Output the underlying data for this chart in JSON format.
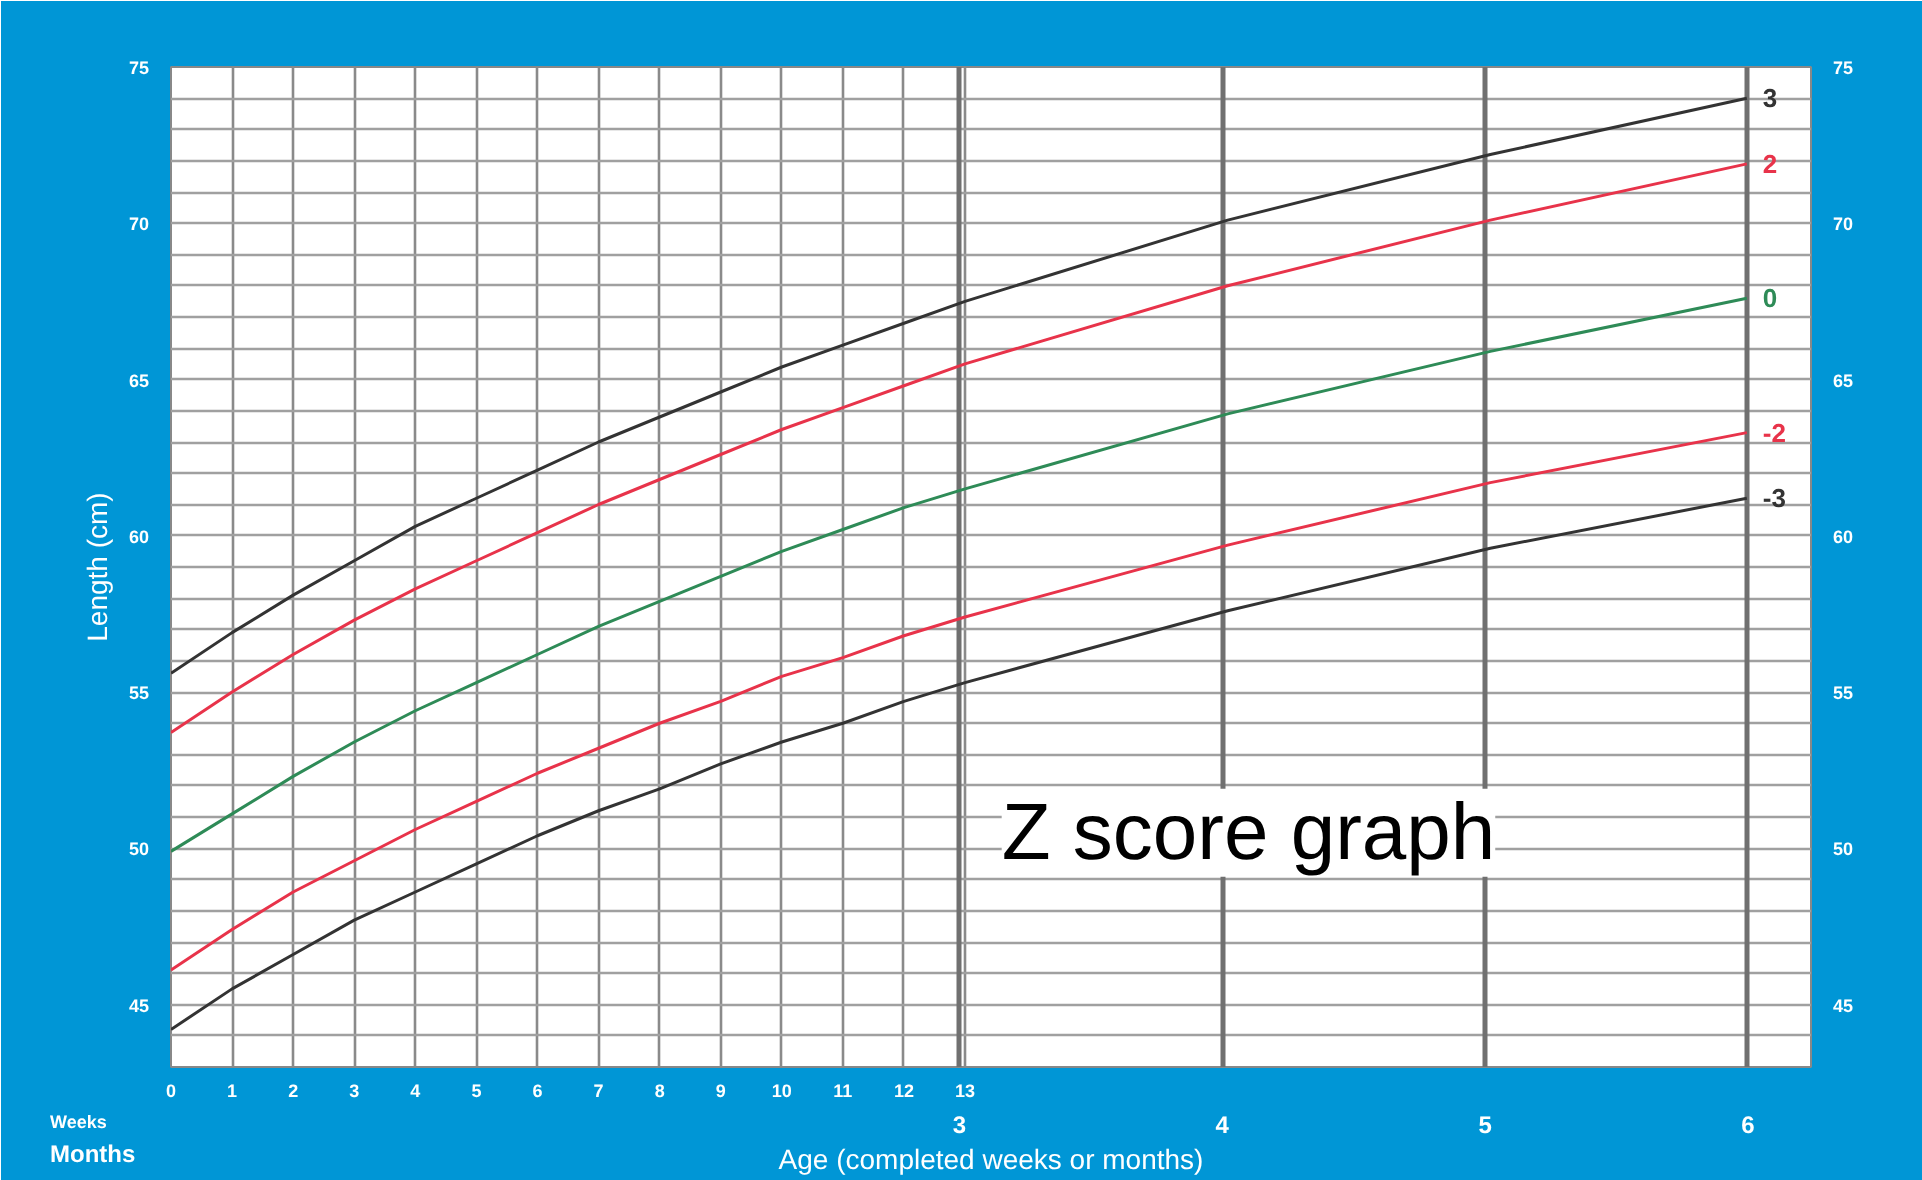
{
  "chart_data": {
    "type": "line",
    "xlabel": "Age (completed weeks or months)",
    "ylabel": "Length (cm)",
    "annotations": [
      "Weeks",
      "Months",
      "Z score graph"
    ],
    "x": [
      0,
      1,
      2,
      3,
      4,
      5,
      6,
      7,
      8,
      9,
      10,
      11,
      12,
      13,
      17.3,
      21.6,
      25.8
    ],
    "xlim": [
      0,
      26.85
    ],
    "xticks": [
      0,
      1,
      2,
      3,
      4,
      5,
      6,
      7,
      8,
      9,
      10,
      11,
      12,
      13
    ],
    "x2lim": [
      0,
      6.24
    ],
    "x2ticks": [
      3,
      4,
      5,
      6
    ],
    "ylim": [
      43,
      75
    ],
    "yticks": [
      {
        "value": 43,
        "label": null
      },
      {
        "value": 44,
        "label": null
      },
      45,
      {
        "value": 46,
        "label": null
      },
      {
        "value": 47,
        "label": null
      },
      {
        "value": 48,
        "label": null
      },
      {
        "value": 49,
        "label": null
      },
      50,
      {
        "value": 51,
        "label": null
      },
      {
        "value": 52,
        "label": null
      },
      {
        "value": 53,
        "label": null
      },
      {
        "value": 54,
        "label": null
      },
      55,
      {
        "value": 56,
        "label": null
      },
      {
        "value": 57,
        "label": null
      },
      {
        "value": 58,
        "label": null
      },
      {
        "value": 59,
        "label": null
      },
      60,
      {
        "value": 61,
        "label": null
      },
      {
        "value": 62,
        "label": null
      },
      {
        "value": 63,
        "label": null
      },
      {
        "value": 64,
        "label": null
      },
      65,
      {
        "value": 66,
        "label": null
      },
      {
        "value": 67,
        "label": null
      },
      {
        "value": 68,
        "label": null
      },
      {
        "value": 69,
        "label": null
      },
      70,
      {
        "value": 71,
        "label": null
      },
      {
        "value": 72,
        "label": null
      },
      {
        "value": 73,
        "label": null
      },
      {
        "value": 74,
        "label": null
      },
      75
    ],
    "y2lim": [
      43,
      75
    ],
    "y2ticks": [
      45,
      50,
      55,
      60,
      65,
      70,
      75
    ],
    "grid": true,
    "series": [
      {
        "name": "3",
        "color": "#333333",
        "values": [
          55.6,
          56.9,
          58.1,
          59.2,
          60.3,
          61.2,
          62.1,
          63.0,
          63.8,
          64.6,
          65.4,
          66.1,
          66.8,
          67.5,
          70.1,
          72.2,
          74.0
        ]
      },
      {
        "name": "2",
        "color": "#e8334a",
        "values": [
          53.7,
          55.0,
          56.2,
          57.3,
          58.3,
          59.2,
          60.1,
          61.0,
          61.8,
          62.6,
          63.4,
          64.1,
          64.8,
          65.5,
          68.0,
          70.1,
          71.9
        ]
      },
      {
        "name": "0",
        "color": "#2e8b57",
        "values": [
          49.9,
          51.1,
          52.3,
          53.4,
          54.4,
          55.3,
          56.2,
          57.1,
          57.9,
          58.7,
          59.5,
          60.2,
          60.9,
          61.5,
          63.9,
          65.9,
          67.6
        ]
      },
      {
        "name": "-2",
        "color": "#e8334a",
        "values": [
          46.1,
          47.4,
          48.6,
          49.6,
          50.6,
          51.5,
          52.4,
          53.2,
          54.0,
          54.7,
          55.5,
          56.1,
          56.8,
          57.4,
          59.7,
          61.7,
          63.3
        ]
      },
      {
        "name": "-3",
        "color": "#333333",
        "values": [
          44.2,
          45.5,
          46.6,
          47.7,
          48.6,
          49.5,
          50.4,
          51.2,
          51.9,
          52.7,
          53.4,
          54.0,
          54.7,
          55.3,
          57.6,
          59.6,
          61.2
        ]
      }
    ]
  }
}
